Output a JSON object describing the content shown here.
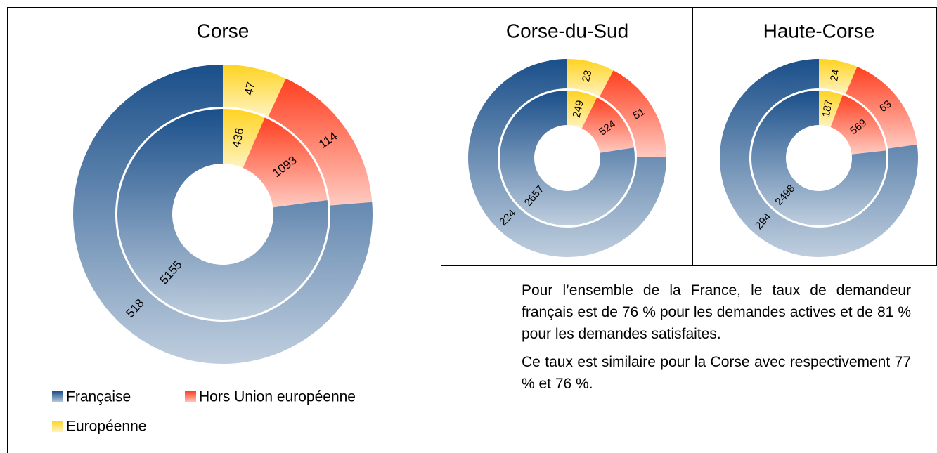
{
  "chart_data": [
    {
      "type": "pie",
      "title": "Corse",
      "categories": [
        "Européenne",
        "Hors Union européenne",
        "Française"
      ],
      "colors": [
        "#ffd320",
        "#ff4020",
        "#1a4f8a"
      ],
      "series": [
        {
          "values": [
            47,
            114,
            518
          ]
        },
        {
          "values": [
            436,
            1093,
            5155
          ]
        }
      ]
    },
    {
      "type": "pie",
      "title": "Corse-du-Sud",
      "categories": [
        "Européenne",
        "Hors Union européenne",
        "Française"
      ],
      "colors": [
        "#ffd320",
        "#ff4020",
        "#1a4f8a"
      ],
      "series": [
        {
          "values": [
            23,
            51,
            224
          ]
        },
        {
          "values": [
            249,
            524,
            2657
          ]
        }
      ]
    },
    {
      "type": "pie",
      "title": "Haute-Corse",
      "categories": [
        "Européenne",
        "Hors Union européenne",
        "Française"
      ],
      "colors": [
        "#ffd320",
        "#ff4020",
        "#1a4f8a"
      ],
      "series": [
        {
          "values": [
            24,
            63,
            294
          ]
        },
        {
          "values": [
            187,
            569,
            2498
          ]
        }
      ]
    }
  ],
  "text": [
    "Pour l’ensemble de la France, le taux de demandeur français est de 76 % pour les demandes actives et de 81 % pour les demandes satisfaites.",
    "Ce taux est similaire pour la Corse avec respectivement 77 % et 76 %."
  ]
}
